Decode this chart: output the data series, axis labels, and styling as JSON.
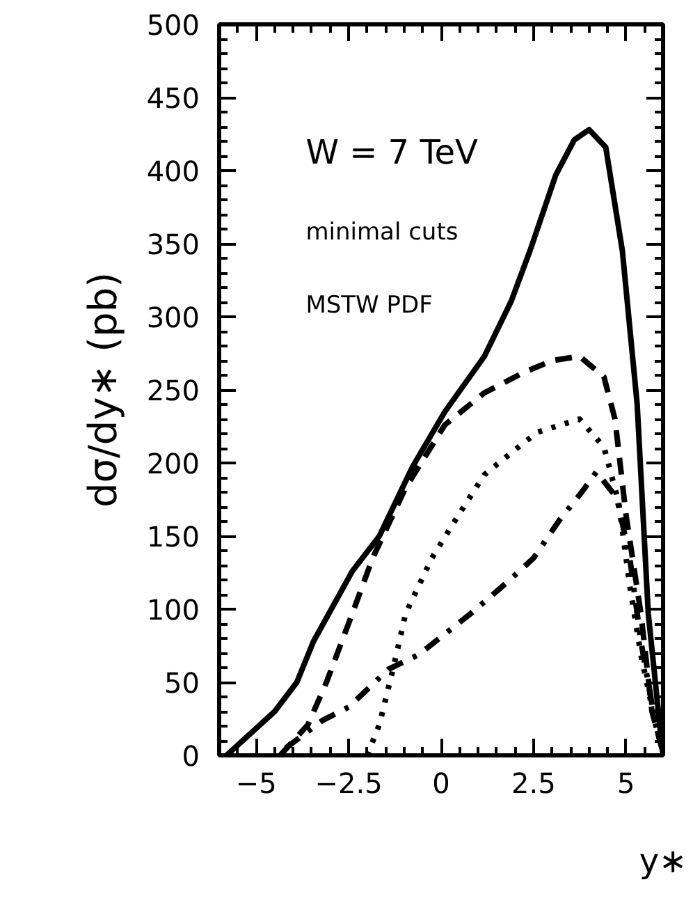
{
  "chart_data": {
    "type": "line",
    "xlabel": "y∗",
    "ylabel": "dσ/dy∗ (pb)",
    "annotations": [
      "W = 7 TeV",
      "minimal cuts",
      "MSTW PDF"
    ],
    "xlim": [
      -6,
      6
    ],
    "ylim": [
      0,
      500
    ],
    "xticks": [
      -5,
      -2.5,
      0,
      2.5,
      5
    ],
    "yticks": [
      0,
      50,
      100,
      150,
      200,
      250,
      300,
      350,
      400,
      450,
      500
    ],
    "series": [
      {
        "color": "#000000",
        "line_style": "solid",
        "x": [
          -5.8,
          -4.5,
          -3.9,
          -3.45,
          -2.4,
          -1.67,
          -0.78,
          0.1,
          1.17,
          1.9,
          2.4,
          3.1,
          3.6,
          4.0,
          4.45,
          4.9,
          5.3,
          5.6,
          5.95,
          6.0
        ],
        "values": [
          0,
          30,
          50,
          78,
          126,
          150,
          197,
          235,
          273,
          311,
          345,
          397,
          421,
          428,
          416,
          345,
          240,
          97,
          11,
          0
        ]
      },
      {
        "color": "#000000",
        "line_style": "dashed",
        "x": [
          -4.35,
          -3.6,
          -3.1,
          -2.4,
          -1.85,
          -0.96,
          0.1,
          1.17,
          2.24,
          3.0,
          3.74,
          4.4,
          4.7,
          5.0,
          5.4,
          5.7,
          6.0
        ],
        "values": [
          0,
          21,
          50,
          97,
          135,
          183,
          226,
          248,
          262,
          270,
          273,
          259,
          230,
          164,
          97,
          30,
          2
        ]
      },
      {
        "color": "#000000",
        "line_style": "dotted",
        "x": [
          -2.0,
          -1.67,
          -1.3,
          -0.96,
          -0.25,
          0.46,
          1.17,
          1.9,
          2.6,
          3.74,
          4.4,
          4.8,
          5.1,
          5.4,
          5.8,
          6.0
        ],
        "values": [
          0,
          21,
          59,
          97,
          135,
          164,
          192,
          207,
          221,
          230,
          211,
          173,
          116,
          69,
          21,
          2
        ]
      },
      {
        "color": "#000000",
        "line_style": "dashdot",
        "x": [
          -4.2,
          -3.2,
          -2.5,
          -1.42,
          -0.6,
          0.2,
          0.8,
          1.4,
          1.9,
          2.5,
          3.2,
          3.8,
          4.2,
          4.75,
          5.1,
          5.4,
          5.8,
          6.0
        ],
        "values": [
          5,
          24,
          33,
          59,
          69,
          85,
          97,
          110,
          121,
          135,
          161,
          180,
          194,
          176,
          135,
          78,
          21,
          2
        ]
      }
    ]
  }
}
